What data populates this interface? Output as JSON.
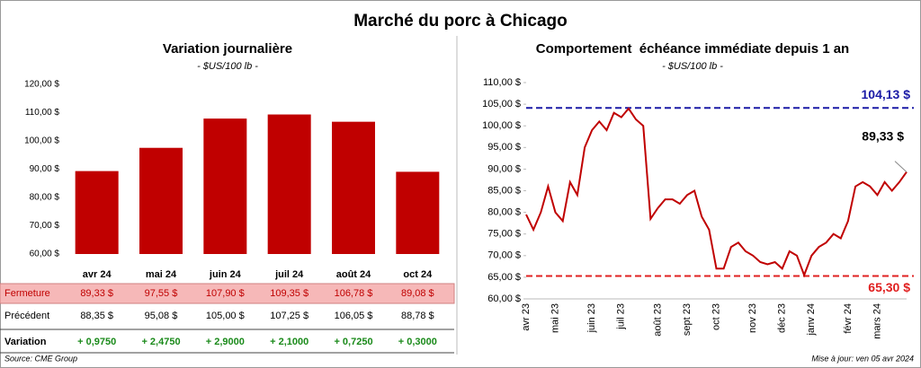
{
  "title": "Marché du porc à Chicago",
  "chart_data": [
    {
      "type": "bar",
      "title": "Variation journalière",
      "subtitle": "- $US/100 lb -",
      "categories": [
        "avr 24",
        "mai 24",
        "juin 24",
        "juil 24",
        "août 24",
        "oct 24"
      ],
      "values": [
        89.33,
        97.55,
        107.9,
        109.35,
        106.78,
        89.08
      ],
      "value_labels": [
        "89,33 $",
        "97,55 $",
        "107,90 $",
        "109,35 $",
        "106,78 $",
        "89,08 $"
      ],
      "color": "#c00000",
      "ylim": [
        60,
        120
      ],
      "yticks": [
        {
          "value": 60,
          "label": "60,00 $"
        },
        {
          "value": 70,
          "label": "70,00 $"
        },
        {
          "value": 80,
          "label": "80,00 $"
        },
        {
          "value": 90,
          "label": "90,00 $"
        },
        {
          "value": 100,
          "label": "100,00 $"
        },
        {
          "value": 110,
          "label": "110,00 $"
        },
        {
          "value": 120,
          "label": "120,00 $"
        }
      ]
    },
    {
      "type": "line",
      "title": "Comportement  échéance immédiate depuis 1 an",
      "subtitle": "- $US/100 lb -",
      "categories": [
        "avr 23",
        null,
        null,
        null,
        "mai 23",
        null,
        null,
        null,
        null,
        "juin 23",
        null,
        null,
        null,
        "juil 23",
        null,
        null,
        null,
        null,
        "août 23",
        null,
        null,
        null,
        "sept 23",
        null,
        null,
        null,
        "oct 23",
        null,
        null,
        null,
        null,
        "nov 23",
        null,
        null,
        null,
        "déc 23",
        null,
        null,
        null,
        "janv 24",
        null,
        null,
        null,
        null,
        "févr 24",
        null,
        null,
        null,
        "mars 24",
        null,
        null,
        null,
        null
      ],
      "series": [
        {
          "color": "#c00000",
          "values": [
            79.5,
            76,
            80,
            86,
            80,
            78,
            87,
            84,
            95,
            99,
            101,
            99,
            103,
            102,
            104,
            101.5,
            100,
            78.5,
            81,
            83,
            83,
            82,
            84,
            85,
            79,
            76,
            67,
            67,
            72,
            73,
            71,
            70,
            68.5,
            68,
            68.5,
            67,
            71,
            70,
            65.5,
            70,
            72,
            73,
            75,
            74,
            78,
            86,
            87,
            86,
            84,
            87,
            85,
            87,
            89.33
          ]
        }
      ],
      "ylim": [
        60,
        110
      ],
      "yticks": [
        {
          "value": 60,
          "label": "60,00 $"
        },
        {
          "value": 65,
          "label": "65,00 $"
        },
        {
          "value": 70,
          "label": "70,00 $"
        },
        {
          "value": 75,
          "label": "75,00 $"
        },
        {
          "value": 80,
          "label": "80,00 $"
        },
        {
          "value": 85,
          "label": "85,00 $"
        },
        {
          "value": 90,
          "label": "90,00 $"
        },
        {
          "value": 95,
          "label": "95,00 $"
        },
        {
          "value": 100,
          "label": "100,00 $"
        },
        {
          "value": 105,
          "label": "105,00 $"
        },
        {
          "value": 110,
          "label": "110,00 $"
        }
      ],
      "reference_lines": [
        {
          "value": 104.13,
          "label": "104,13 $",
          "color": "#1a1aa6"
        },
        {
          "value": 65.3,
          "label": "65,30 $",
          "color": "#e02020"
        }
      ],
      "last_label": {
        "value": 89.33,
        "label": "89,33 $"
      }
    }
  ],
  "table": {
    "rows": [
      {
        "label": "Fermeture"
      },
      {
        "label": "Précédent",
        "cells": [
          "88,35 $",
          "95,08 $",
          "105,00 $",
          "107,25 $",
          "106,05 $",
          "88,78 $"
        ]
      },
      {
        "label": "Variation",
        "cells": [
          "+ 0,9750",
          "+ 2,4750",
          "+ 2,9000",
          "+ 2,1000",
          "+ 0,7250",
          "+ 0,3000"
        ]
      }
    ]
  },
  "source": "Source: CME Group",
  "updated": "Mise à jour: ven 05 avr 2024"
}
